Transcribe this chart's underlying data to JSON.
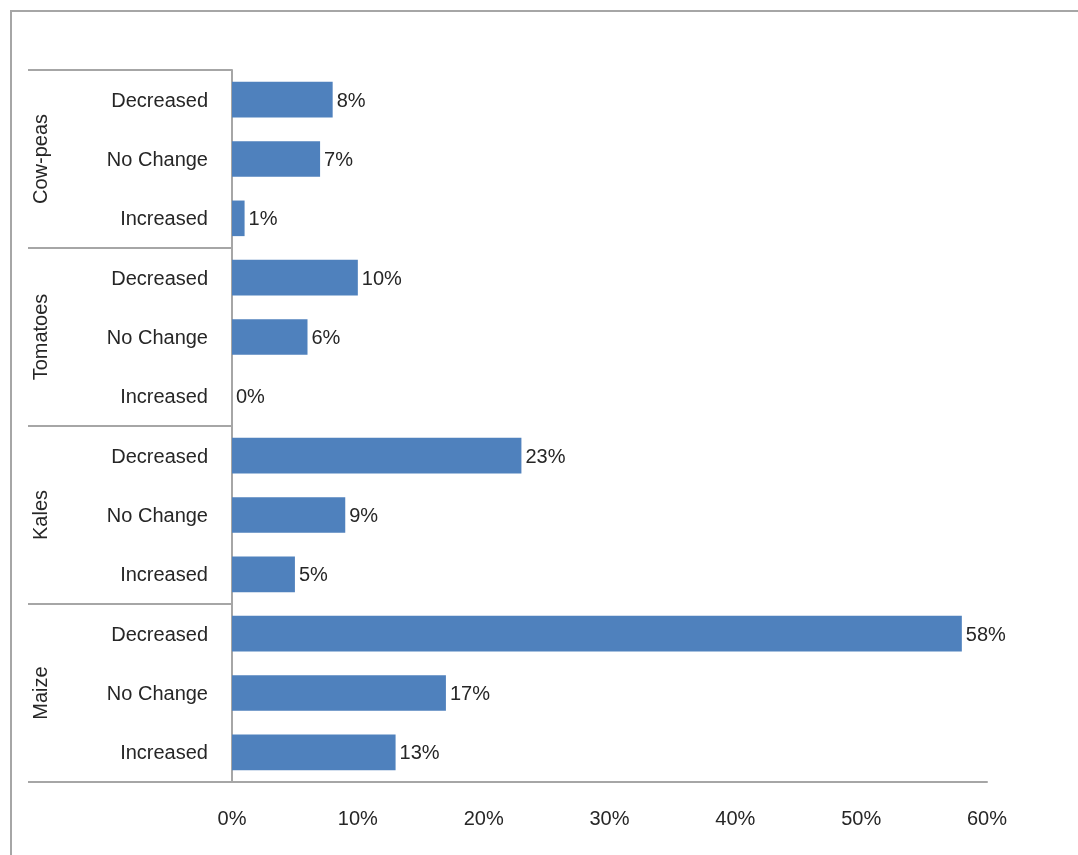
{
  "chart_data": {
    "type": "bar",
    "orientation": "horizontal",
    "categories": [
      "Decreased",
      "No Change",
      "Increased",
      "Decreased",
      "No Change",
      "Increased",
      "Decreased",
      "No Change",
      "Increased",
      "Decreased",
      "No Change",
      "Increased"
    ],
    "values": [
      8,
      7,
      1,
      10,
      6,
      0,
      23,
      9,
      5,
      58,
      17,
      13
    ],
    "value_labels": [
      "8%",
      "7%",
      "1%",
      "10%",
      "6%",
      "0%",
      "23%",
      "9%",
      "5%",
      "58%",
      "17%",
      "13%"
    ],
    "color": "#4f81bd",
    "xlim": [
      0,
      60
    ],
    "xticks": [
      {
        "value": 0,
        "label": "0%"
      },
      {
        "value": 10,
        "label": "10%"
      },
      {
        "value": 20,
        "label": "20%"
      },
      {
        "value": 30,
        "label": "30%"
      },
      {
        "value": 40,
        "label": "40%"
      },
      {
        "value": 50,
        "label": "50%"
      },
      {
        "value": 60,
        "label": "60%"
      }
    ],
    "annotations": [
      "Cow-peas",
      "Tomatoes",
      "Kales",
      "Maize"
    ],
    "grid": false
  }
}
